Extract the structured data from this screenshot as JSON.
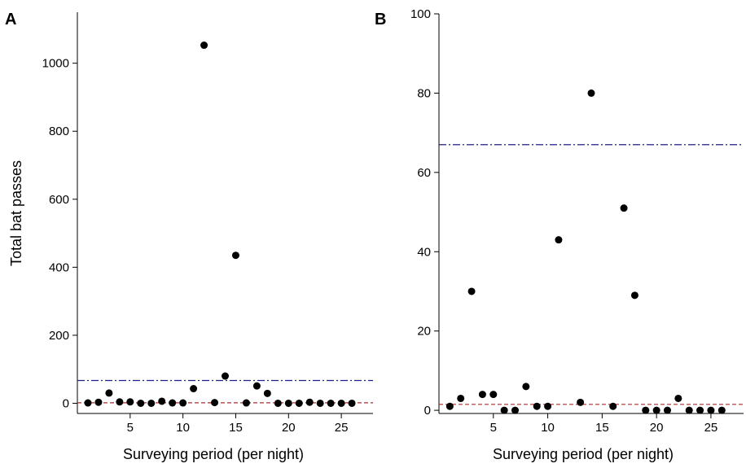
{
  "chart_data": [
    {
      "type": "scatter",
      "panel_label": "A",
      "xlabel": "Surveying period (per night)",
      "ylabel": "Total bat passes",
      "xlim": [
        0,
        28
      ],
      "ylim": [
        -30,
        1150
      ],
      "xticks": [
        5,
        10,
        15,
        20,
        25
      ],
      "yticks": [
        0,
        200,
        400,
        600,
        800,
        1000
      ],
      "grid": false,
      "x": [
        1,
        2,
        3,
        4,
        5,
        6,
        7,
        8,
        9,
        10,
        11,
        12,
        13,
        14,
        15,
        16,
        17,
        18,
        19,
        20,
        21,
        22,
        23,
        24,
        25,
        26
      ],
      "y": [
        1,
        3,
        30,
        4,
        4,
        0,
        0,
        6,
        1,
        1,
        43,
        1053,
        2,
        80,
        435,
        1,
        51,
        29,
        0,
        0,
        0,
        3,
        0,
        0,
        0,
        0
      ],
      "reference_lines": [
        {
          "style": "dash-dot",
          "color": "#1f1f8f",
          "y": 67
        },
        {
          "style": "dashed",
          "color": "#b3262b",
          "y": 1.5
        }
      ]
    },
    {
      "type": "scatter",
      "panel_label": "B",
      "xlabel": "Surveying period (per night)",
      "ylabel": "",
      "xlim": [
        0,
        28
      ],
      "ylim": [
        -0.8,
        100
      ],
      "xticks": [
        5,
        10,
        15,
        20,
        25
      ],
      "yticks": [
        0,
        20,
        40,
        60,
        80,
        100
      ],
      "grid": false,
      "x": [
        1,
        2,
        3,
        4,
        5,
        6,
        7,
        8,
        9,
        10,
        11,
        13,
        14,
        16,
        17,
        18,
        19,
        20,
        21,
        22,
        23,
        24,
        25,
        26
      ],
      "y": [
        1,
        3,
        30,
        4,
        4,
        0,
        0,
        6,
        1,
        1,
        43,
        2,
        80,
        1,
        51,
        29,
        0,
        0,
        0,
        3,
        0,
        0,
        0,
        0
      ],
      "reference_lines": [
        {
          "style": "dash-dot",
          "color": "#1f1f8f",
          "y": 67
        },
        {
          "style": "dashed",
          "color": "#b3262b",
          "y": 1.5
        }
      ]
    }
  ]
}
